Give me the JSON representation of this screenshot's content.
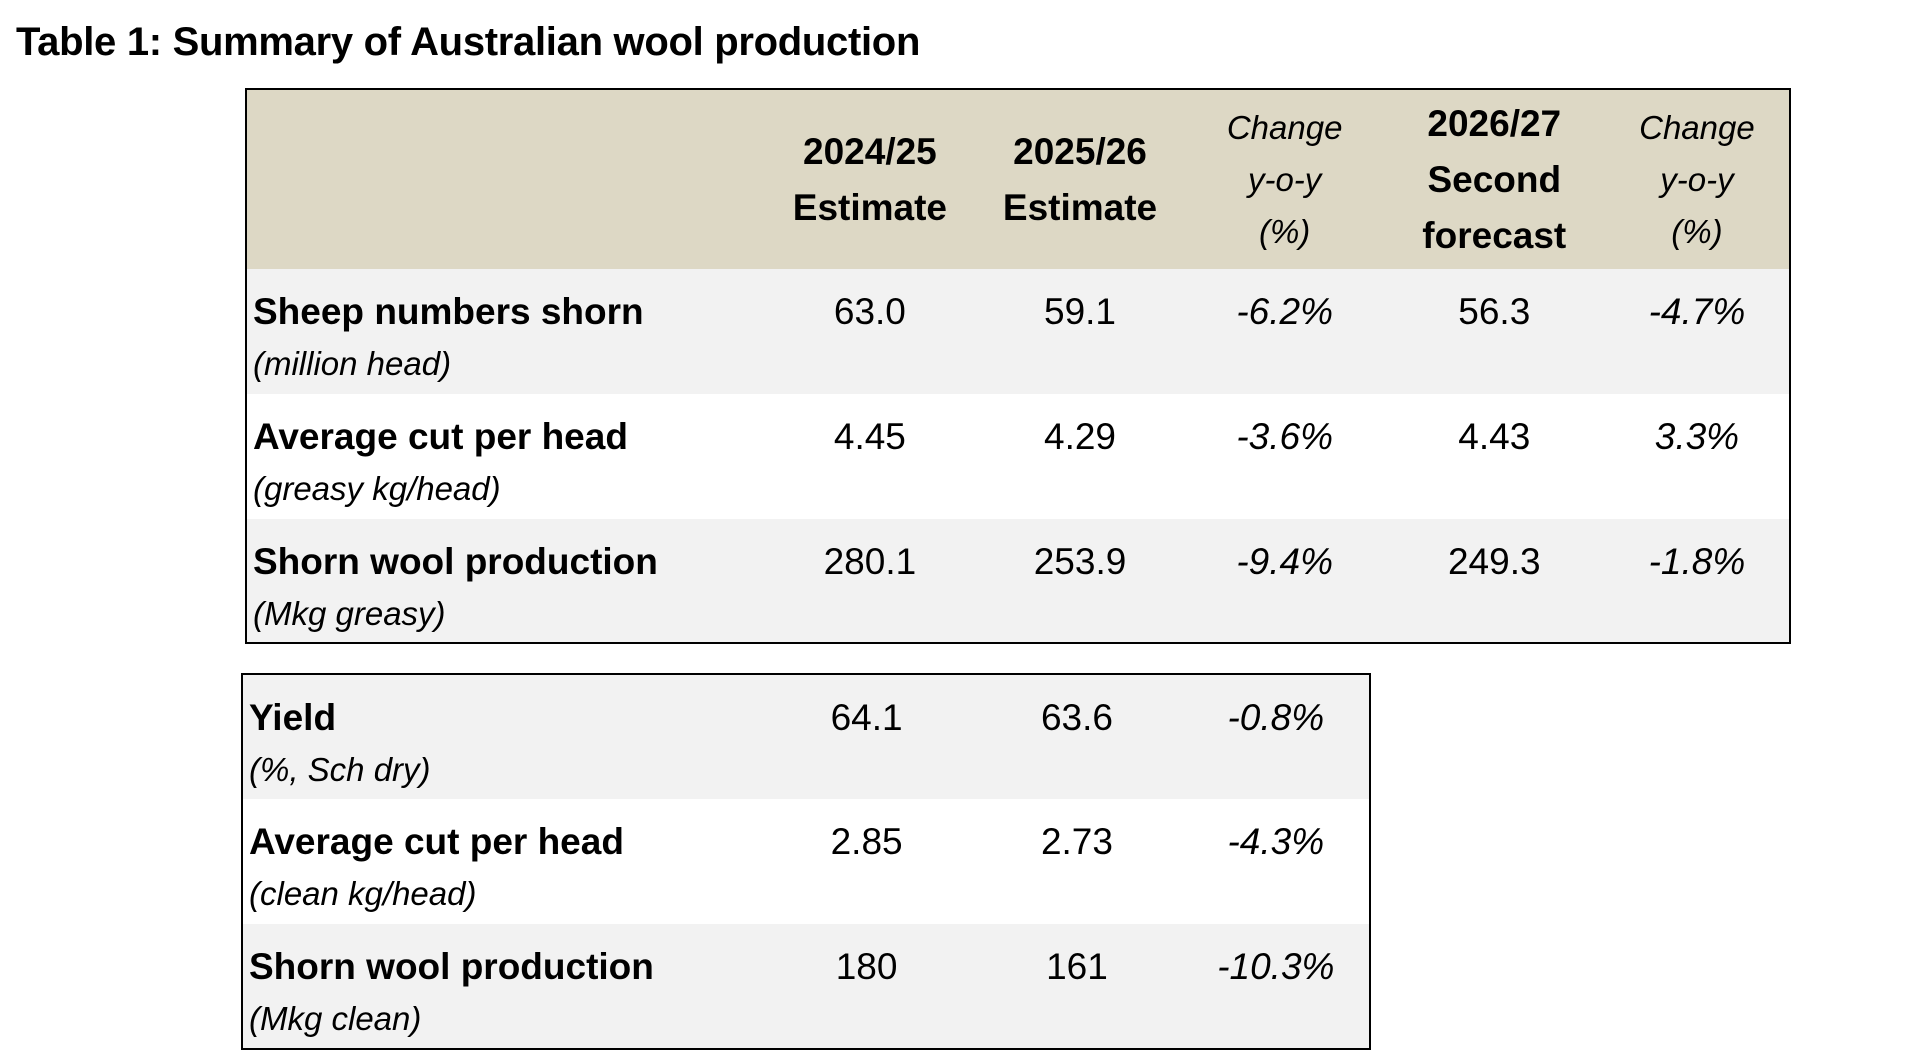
{
  "title": "Table 1: Summary of Australian wool production",
  "greasy_table": {
    "headers": [
      {
        "lines": [
          "2024/25",
          "Estimate"
        ],
        "style": "bold"
      },
      {
        "lines": [
          "2025/26",
          "Estimate"
        ],
        "style": "bold"
      },
      {
        "lines": [
          "Change",
          "y-o-y",
          "(%)"
        ],
        "style": "italic"
      },
      {
        "lines": [
          "2026/27",
          "Second",
          "forecast"
        ],
        "style": "bold"
      },
      {
        "lines": [
          "Change",
          "y-o-y",
          "(%)"
        ],
        "style": "italic"
      }
    ],
    "rows": [
      {
        "label": "Sheep numbers shorn",
        "unit": "(million head)",
        "v2024": "63.0",
        "v2025": "59.1",
        "chg1": "-6.2%",
        "v2026": "56.3",
        "chg2": "-4.7%"
      },
      {
        "label": "Average cut per head",
        "unit": "(greasy kg/head)",
        "v2024": "4.45",
        "v2025": "4.29",
        "chg1": "-3.6%",
        "v2026": "4.43",
        "chg2": "3.3%"
      },
      {
        "label": "Shorn wool production",
        "unit": "(Mkg greasy)",
        "v2024": "280.1",
        "v2025": "253.9",
        "chg1": "-9.4%",
        "v2026": "249.3",
        "chg2": "-1.8%"
      }
    ]
  },
  "clean_table": {
    "rows": [
      {
        "label": "Yield",
        "unit": "(%, Sch dry)",
        "v2024": "64.1",
        "v2025": "63.6",
        "chg1": "-0.8%"
      },
      {
        "label": "Average cut per head",
        "unit": "(clean kg/head)",
        "v2024": "2.85",
        "v2025": "2.73",
        "chg1": "-4.3%"
      },
      {
        "label": "Shorn wool production",
        "unit": "(Mkg clean)",
        "v2024": "180",
        "v2025": "161",
        "chg1": "-10.3%"
      }
    ]
  },
  "colors": {
    "header_bg": "#ddd8c5",
    "row_shade": "#f2f2f2",
    "border": "#000000"
  }
}
